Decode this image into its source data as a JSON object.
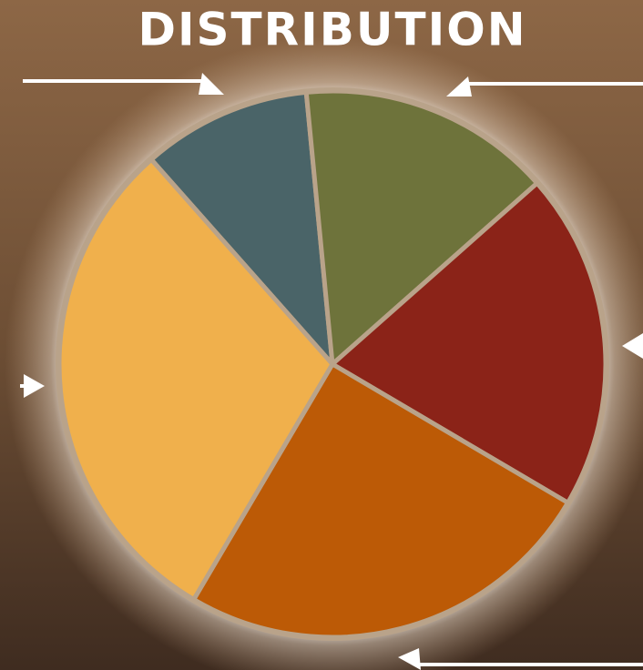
{
  "chart_data": {
    "type": "pie",
    "title": "DISTRIBUTION",
    "values": [
      10,
      15,
      20,
      25,
      30
    ],
    "colors": [
      "#4a6468",
      "#6e733b",
      "#8b2318",
      "#bc5a06",
      "#f0b04c"
    ]
  }
}
